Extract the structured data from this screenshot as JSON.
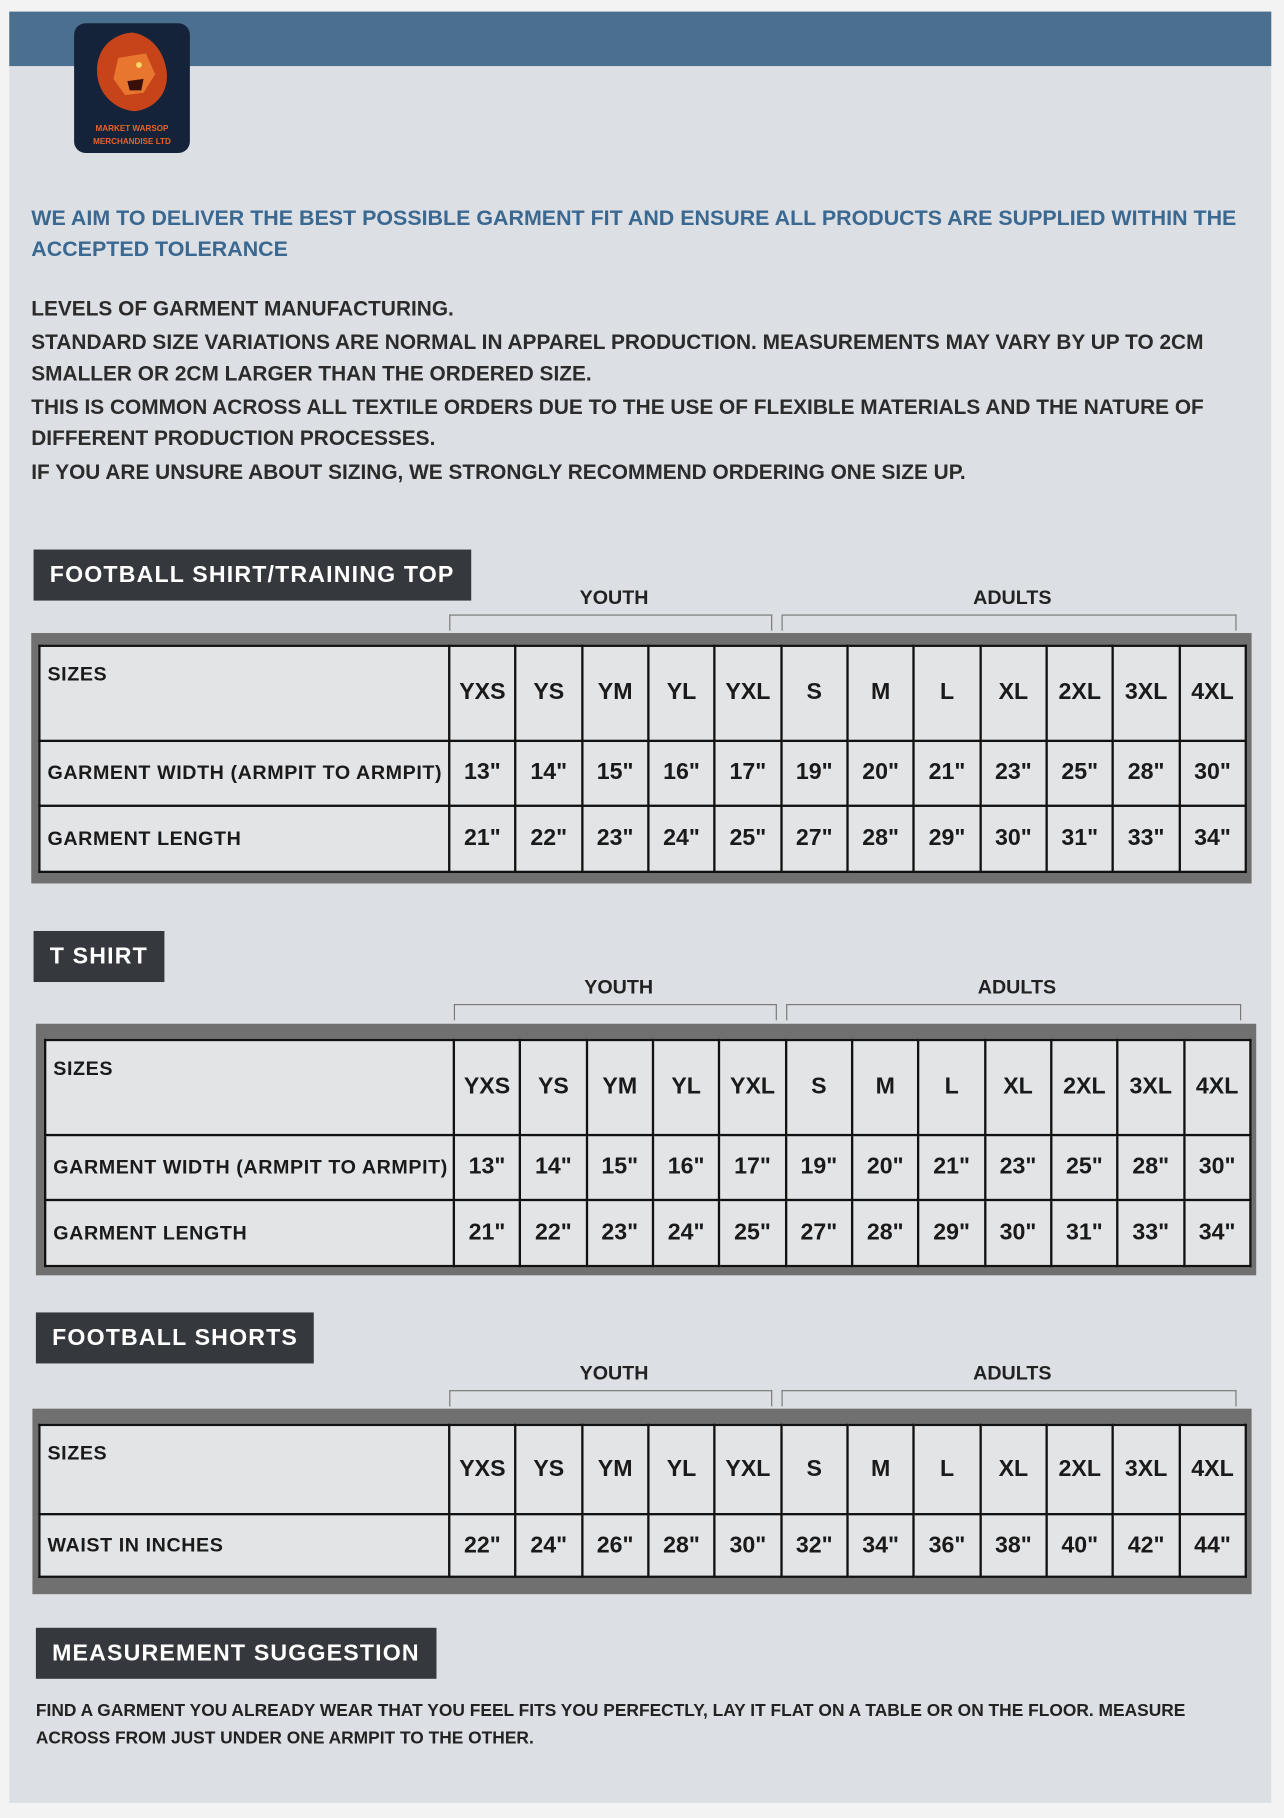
{
  "logo": {
    "line1": "MARKET WARSOP",
    "line2": "MERCHANDISE LTD"
  },
  "intro": {
    "headline": "WE AIM TO DELIVER THE BEST POSSIBLE GARMENT FIT AND ENSURE ALL PRODUCTS ARE SUPPLIED WITHIN THE ACCEPTED TOLERANCE",
    "paragraphs": [
      "LEVELS OF GARMENT MANUFACTURING.",
      "STANDARD SIZE VARIATIONS ARE NORMAL IN APPAREL PRODUCTION. MEASUREMENTS MAY VARY BY UP TO 2CM SMALLER OR 2CM LARGER THAN THE ORDERED SIZE.",
      "THIS IS COMMON ACROSS ALL TEXTILE ORDERS DUE TO THE USE OF FLEXIBLE MATERIALS AND THE NATURE OF DIFFERENT PRODUCTION PROCESSES.",
      "IF YOU ARE UNSURE ABOUT SIZING, WE STRONGLY RECOMMEND ORDERING ONE SIZE UP."
    ]
  },
  "tables": [
    {
      "title": "FOOTBALL SHIRT/TRAINING TOP",
      "groups": [
        "YOUTH",
        "ADULTS"
      ],
      "rows": [
        [
          "SIZES",
          "YXS",
          "YS",
          "YM",
          "YL",
          "YXL",
          "S",
          "M",
          "L",
          "XL",
          "2XL",
          "3XL",
          "4XL"
        ],
        [
          "GARMENT WIDTH (ARMPIT TO ARMPIT)",
          "13\"",
          "14\"",
          "15\"",
          "16\"",
          "17\"",
          "19\"",
          "20\"",
          "21\"",
          "23\"",
          "25\"",
          "28\"",
          "30\""
        ],
        [
          "GARMENT LENGTH",
          "21\"",
          "22\"",
          "23\"",
          "24\"",
          "25\"",
          "27\"",
          "28\"",
          "29\"",
          "30\"",
          "31\"",
          "33\"",
          "34\""
        ]
      ]
    },
    {
      "title": "T SHIRT",
      "groups": [
        "YOUTH",
        "ADULTS"
      ],
      "rows": [
        [
          "SIZES",
          "YXS",
          "YS",
          "YM",
          "YL",
          "YXL",
          "S",
          "M",
          "L",
          "XL",
          "2XL",
          "3XL",
          "4XL"
        ],
        [
          "GARMENT WIDTH (ARMPIT TO ARMPIT)",
          "13\"",
          "14\"",
          "15\"",
          "16\"",
          "17\"",
          "19\"",
          "20\"",
          "21\"",
          "23\"",
          "25\"",
          "28\"",
          "30\""
        ],
        [
          "GARMENT LENGTH",
          "21\"",
          "22\"",
          "23\"",
          "24\"",
          "25\"",
          "27\"",
          "28\"",
          "29\"",
          "30\"",
          "31\"",
          "33\"",
          "34\""
        ]
      ]
    },
    {
      "title": "FOOTBALL SHORTS",
      "groups": [
        "YOUTH",
        "ADULTS"
      ],
      "rows": [
        [
          "SIZES",
          "YXS",
          "YS",
          "YM",
          "YL",
          "YXL",
          "S",
          "M",
          "L",
          "XL",
          "2XL",
          "3XL",
          "4XL"
        ],
        [
          "WAIST IN INCHES",
          "22\"",
          "24\"",
          "26\"",
          "28\"",
          "30\"",
          "32\"",
          "34\"",
          "36\"",
          "38\"",
          "40\"",
          "42\"",
          "44\""
        ]
      ]
    }
  ],
  "measurement": {
    "title": "MEASUREMENT SUGGESTION",
    "text": "FIND A GARMENT YOU ALREADY WEAR THAT YOU FEEL FITS YOU PERFECTLY, LAY IT FLAT ON A TABLE OR ON THE FLOOR. MEASURE ACROSS FROM JUST UNDER ONE ARMPIT TO THE OTHER."
  }
}
